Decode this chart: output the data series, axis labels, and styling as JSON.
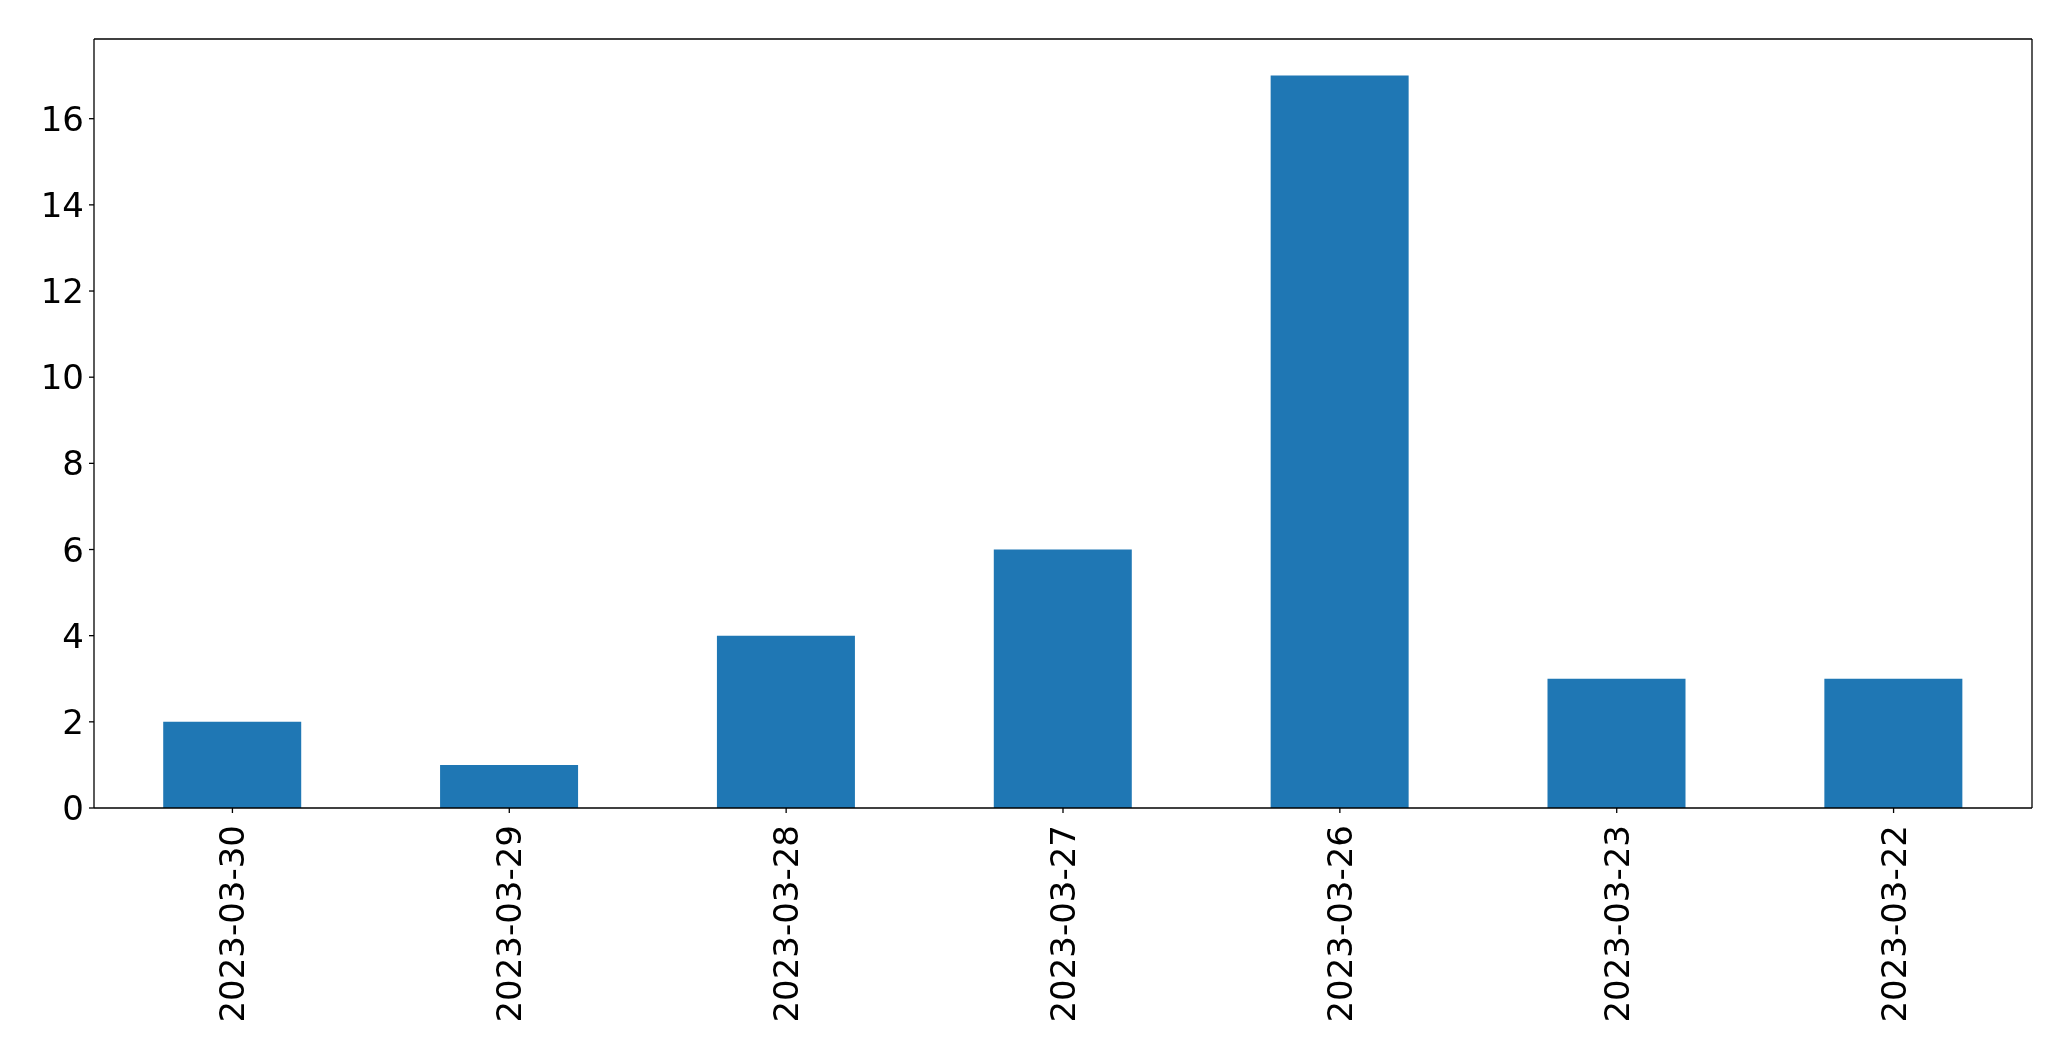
{
  "chart_data": {
    "type": "bar",
    "categories": [
      "2023-03-30",
      "2023-03-29",
      "2023-03-28",
      "2023-03-27",
      "2023-03-26",
      "2023-03-23",
      "2023-03-22"
    ],
    "values": [
      2,
      1,
      4,
      6,
      17,
      3,
      3
    ],
    "color": "#1f77b4",
    "ylim": [
      0,
      17.85
    ],
    "yticks": [
      0,
      2,
      4,
      6,
      8,
      10,
      12,
      14,
      16
    ]
  }
}
